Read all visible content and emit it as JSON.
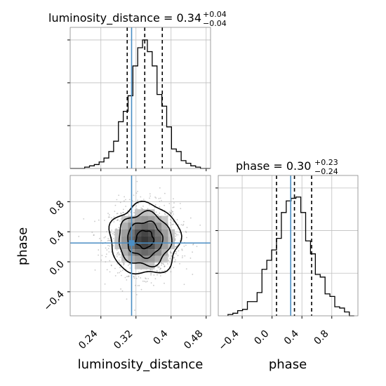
{
  "chart_data": [
    {
      "type": "bar",
      "panel": "luminosity_distance marginal histogram",
      "title": {
        "prefix": "luminosity_distance = ",
        "value": "0.34",
        "plus": "+0.04",
        "minus": "−0.04"
      },
      "xlim": [
        0.17,
        0.49
      ],
      "x_ticks": [
        0.24,
        0.32,
        0.4,
        0.48
      ],
      "y_max": 1.0,
      "bin_edges": [
        0.17,
        0.181,
        0.192,
        0.203,
        0.214,
        0.225,
        0.236,
        0.247,
        0.258,
        0.269,
        0.28,
        0.291,
        0.302,
        0.313,
        0.324,
        0.335,
        0.346,
        0.357,
        0.368,
        0.379,
        0.39,
        0.401,
        0.412,
        0.423,
        0.434,
        0.445,
        0.456,
        0.467,
        0.478,
        0.489
      ],
      "counts": [
        0.0,
        0.0,
        0.0,
        0.01,
        0.02,
        0.03,
        0.05,
        0.08,
        0.13,
        0.21,
        0.36,
        0.44,
        0.56,
        0.79,
        0.93,
        0.99,
        0.9,
        0.79,
        0.57,
        0.48,
        0.32,
        0.15,
        0.13,
        0.06,
        0.04,
        0.02,
        0.01,
        0.0,
        0.0
      ],
      "quantiles": [
        0.3,
        0.34,
        0.38
      ],
      "truth": 0.31
    },
    {
      "type": "scatter",
      "panel": "luminosity_distance vs phase 2D density",
      "xlabel": "luminosity_distance",
      "ylabel": "phase",
      "xlim": [
        0.17,
        0.49
      ],
      "ylim": [
        -0.72,
        1.15
      ],
      "x_ticks": [
        0.24,
        0.32,
        0.4,
        0.48
      ],
      "y_ticks": [
        -0.4,
        0.0,
        0.4,
        0.8
      ],
      "center": {
        "x": 0.34,
        "y": 0.3
      },
      "spread": {
        "x": 0.04,
        "y": 0.235
      },
      "contour_levels_sigma": [
        0.5,
        1.0,
        1.5,
        2.0
      ],
      "truth": {
        "x": 0.31,
        "y": 0.25
      }
    },
    {
      "type": "bar",
      "panel": "phase marginal histogram",
      "title": {
        "prefix": "phase = ",
        "value": "0.30",
        "plus": "+0.23",
        "minus": "−0.24"
      },
      "xlabel": "phase",
      "xlim": [
        -0.72,
        1.15
      ],
      "x_ticks": [
        -0.4,
        0.0,
        0.4,
        0.8
      ],
      "y_max": 1.0,
      "bin_edges": [
        -0.59,
        -0.525,
        -0.46,
        -0.395,
        -0.33,
        -0.265,
        -0.2,
        -0.135,
        -0.07,
        -0.005,
        0.06,
        0.125,
        0.19,
        0.255,
        0.32,
        0.385,
        0.45,
        0.515,
        0.58,
        0.645,
        0.71,
        0.775,
        0.84,
        0.905,
        0.97,
        1.035,
        1.1
      ],
      "counts": [
        0.01,
        0.02,
        0.04,
        0.05,
        0.11,
        0.11,
        0.18,
        0.36,
        0.43,
        0.51,
        0.6,
        0.8,
        0.89,
        0.91,
        0.92,
        0.8,
        0.58,
        0.48,
        0.32,
        0.3,
        0.17,
        0.15,
        0.07,
        0.06,
        0.03,
        0.0
      ],
      "quantiles": [
        0.06,
        0.3,
        0.53
      ],
      "truth": 0.25
    }
  ],
  "colors": {
    "truth": "#4a8ec4",
    "hist": "#000000",
    "grid": "#bfbfbf",
    "density": "#000000"
  }
}
